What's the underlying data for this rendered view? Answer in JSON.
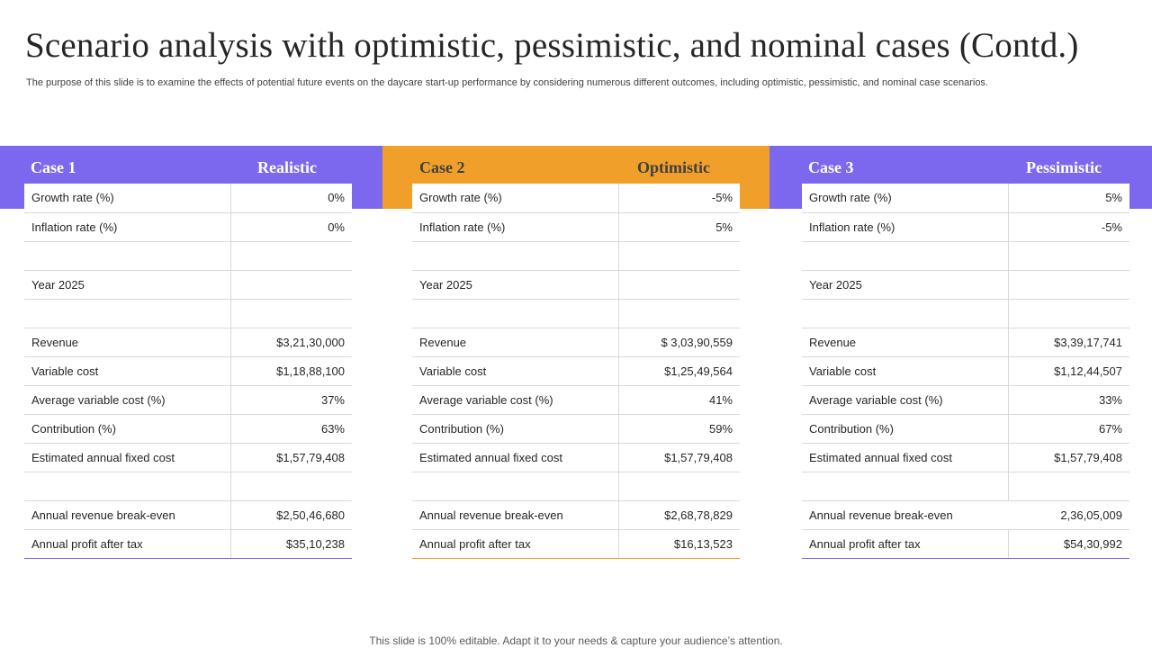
{
  "title": "Scenario analysis with optimistic, pessimistic, and nominal cases (Contd.)",
  "subtitle": "The purpose of this slide is to examine the effects of potential future events on the daycare start-up performance by considering numerous different outcomes, including optimistic, pessimistic, and nominal case scenarios.",
  "colors": {
    "purple": "#7B68EE",
    "orange": "#F0A02A"
  },
  "cases": [
    {
      "case_label": "Case 1",
      "scenario": "Realistic",
      "rows": [
        {
          "label": "Growth rate (%)",
          "value": "0%"
        },
        {
          "label": "Inflation rate (%)",
          "value": "0%"
        },
        {
          "label": "",
          "value": ""
        },
        {
          "label": "Year 2025",
          "value": ""
        },
        {
          "label": "",
          "value": ""
        },
        {
          "label": "Revenue",
          "value": "$3,21,30,000"
        },
        {
          "label": "Variable cost",
          "value": "$1,18,88,100"
        },
        {
          "label": "Average variable cost (%)",
          "value": "37%"
        },
        {
          "label": "Contribution (%)",
          "value": "63%"
        },
        {
          "label": "Estimated annual fixed cost",
          "value": "$1,57,79,408"
        },
        {
          "label": "",
          "value": ""
        },
        {
          "label": "Annual revenue break-even",
          "value": "$2,50,46,680"
        },
        {
          "label": "Annual profit after tax",
          "value": "$35,10,238"
        }
      ]
    },
    {
      "case_label": "Case 2",
      "scenario": "Optimistic",
      "rows": [
        {
          "label": "Growth rate (%)",
          "value": "-5%"
        },
        {
          "label": "Inflation rate (%)",
          "value": "5%"
        },
        {
          "label": "",
          "value": ""
        },
        {
          "label": "Year 2025",
          "value": ""
        },
        {
          "label": "",
          "value": ""
        },
        {
          "label": "Revenue",
          "value": "$ 3,03,90,559"
        },
        {
          "label": "Variable cost",
          "value": "$1,25,49,564"
        },
        {
          "label": "Average variable cost (%)",
          "value": "41%"
        },
        {
          "label": "Contribution (%)",
          "value": "59%"
        },
        {
          "label": "Estimated annual fixed cost",
          "value": "$1,57,79,408"
        },
        {
          "label": "",
          "value": ""
        },
        {
          "label": "Annual revenue break-even",
          "value": "$2,68,78,829"
        },
        {
          "label": "Annual profit after tax",
          "value": "$16,13,523"
        }
      ]
    },
    {
      "case_label": "Case 3",
      "scenario": "Pessimistic",
      "rows": [
        {
          "label": "Growth rate (%)",
          "value": "5%"
        },
        {
          "label": "Inflation rate (%)",
          "value": "-5%"
        },
        {
          "label": "",
          "value": ""
        },
        {
          "label": "Year 2025",
          "value": ""
        },
        {
          "label": "",
          "value": ""
        },
        {
          "label": "Revenue",
          "value": "$3,39,17,741"
        },
        {
          "label": "Variable cost",
          "value": "$1,12,44,507"
        },
        {
          "label": "Average variable cost (%)",
          "value": "33%"
        },
        {
          "label": "Contribution (%)",
          "value": "67%"
        },
        {
          "label": "Estimated annual fixed cost",
          "value": "$1,57,79,408"
        },
        {
          "label": "",
          "value": ""
        },
        {
          "label": "Annual revenue break-even",
          "value": "2,36,05,009"
        },
        {
          "label": "Annual profit after tax",
          "value": "$54,30,992"
        }
      ]
    }
  ],
  "footer": "This slide is 100% editable. Adapt it to your needs & capture your audience’s attention."
}
